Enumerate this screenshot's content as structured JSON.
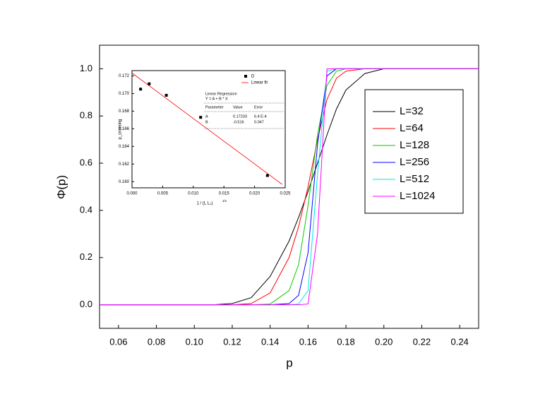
{
  "chart_data": [
    {
      "type": "line",
      "xlabel": "p",
      "ylabel": "Φ(p)",
      "xlim": [
        0.05,
        0.25
      ],
      "ylim": [
        -0.1,
        1.1
      ],
      "xticks": [
        0.06,
        0.08,
        {
          "value": 0.1,
          "label": "0.10"
        },
        0.12,
        0.14,
        0.16,
        0.18,
        {
          "value": 0.2,
          "label": "0.20"
        },
        0.22,
        0.24
      ],
      "yticks": [
        {
          "value": 0,
          "label": "0.0"
        },
        0.2,
        0.4,
        0.6,
        0.8,
        {
          "value": 1,
          "label": "1.0"
        }
      ],
      "x": [
        0.05,
        0.1,
        0.11,
        0.12,
        0.13,
        0.14,
        0.15,
        0.155,
        0.16,
        0.165,
        0.17,
        0.175,
        0.18,
        0.19,
        0.2,
        0.25
      ],
      "series": [
        {
          "name": "L=32",
          "color": "#000000",
          "values": [
            0,
            0,
            0,
            0.005,
            0.03,
            0.12,
            0.27,
            0.37,
            0.48,
            0.6,
            0.72,
            0.83,
            0.91,
            0.98,
            1,
            1
          ]
        },
        {
          "name": "L=64",
          "color": "#ff0000",
          "values": [
            0,
            0,
            0,
            0,
            0.005,
            0.05,
            0.2,
            0.33,
            0.5,
            0.7,
            0.87,
            0.96,
            0.99,
            1,
            1,
            1
          ]
        },
        {
          "name": "L=128",
          "color": "#00cc00",
          "values": [
            0,
            0,
            0,
            0,
            0,
            0.003,
            0.06,
            0.17,
            0.42,
            0.72,
            0.93,
            0.99,
            1,
            1,
            1,
            1
          ]
        },
        {
          "name": "L=256",
          "color": "#0000ff",
          "values": [
            0,
            0,
            0,
            0,
            0,
            0,
            0.005,
            0.04,
            0.22,
            0.68,
            0.97,
            1,
            1,
            1,
            1,
            1
          ]
        },
        {
          "name": "L=512",
          "color": "#00e5e5",
          "values": [
            0,
            0,
            0,
            0,
            0,
            0,
            0,
            0.003,
            0.06,
            0.55,
            0.99,
            1,
            1,
            1,
            1,
            1
          ]
        },
        {
          "name": "L=1024",
          "color": "#ff00ff",
          "values": [
            0,
            0,
            0,
            0,
            0,
            0,
            0,
            0,
            0.003,
            0.3,
            1,
            1,
            1,
            1,
            1,
            1
          ]
        }
      ]
    },
    {
      "type": "scatter",
      "xlabel": "1 / (L L₀)",
      "xlabel_sup": "1/ν",
      "ylabel": "p_crossing",
      "xlim": [
        0,
        0.025
      ],
      "ylim": [
        0.1593,
        0.1726
      ],
      "xticks": [
        {
          "value": 0,
          "label": "0.000"
        },
        0.005,
        {
          "value": 0.01,
          "label": "0.010"
        },
        0.015,
        {
          "value": 0.02,
          "label": "0.020"
        },
        0.025
      ],
      "yticks": [
        {
          "value": 0.16,
          "label": "0.160"
        },
        0.162,
        0.164,
        0.166,
        0.168,
        {
          "value": 0.17,
          "label": "0.170"
        },
        0.172
      ],
      "series": [
        {
          "name": "D",
          "color": "#000000",
          "x": [
            0.0014,
            0.0028,
            0.0056,
            0.0112,
            0.0221
          ],
          "values": [
            0.1705,
            0.1711,
            0.1698,
            0.1673,
            0.1607
          ]
        }
      ],
      "fit": {
        "name": "Linear fit",
        "color": "#ff0000",
        "x": [
          0,
          0.0245
        ],
        "values": [
          0.17233,
          0.15969
        ]
      },
      "table": {
        "title": "Linear Regression",
        "equation": "Y = A + B * X",
        "header": [
          "Parameter",
          "Value",
          "Error"
        ],
        "rows": [
          [
            "A",
            "0.17233",
            "6.4 E-4"
          ],
          [
            "B",
            "-0.516",
            "0.047"
          ]
        ]
      }
    }
  ]
}
